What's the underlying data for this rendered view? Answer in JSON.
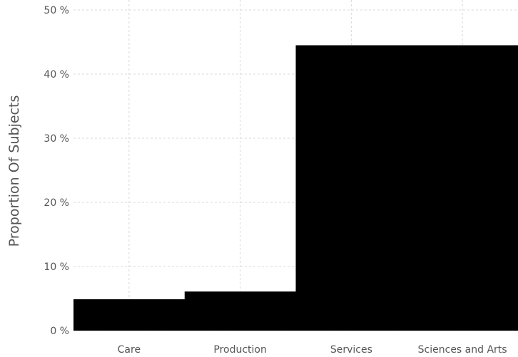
{
  "chart_data": {
    "type": "bar",
    "title": "",
    "xlabel": "",
    "ylabel": "Proportion Of Subjects",
    "categories": [
      "Care",
      "Production",
      "Services",
      "Sciences and Arts"
    ],
    "values": [
      4.9,
      6.1,
      44.5,
      44.5
    ],
    "ylim": [
      0,
      50
    ],
    "yticks": [
      0,
      10,
      20,
      30,
      40,
      50
    ],
    "ytick_labels": [
      "0 %",
      "10 %",
      "20 %",
      "30 %",
      "40 %",
      "50 %"
    ],
    "grid": true,
    "legend": "none",
    "bar_color": "#000000",
    "grid_color": "#d8d8d8",
    "text_color": "#555555"
  }
}
